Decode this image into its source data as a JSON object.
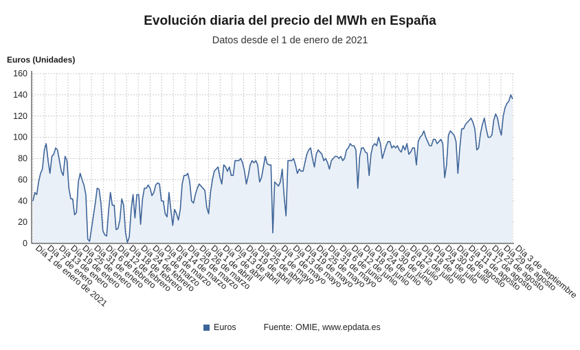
{
  "title": "Evolución diaria del precio del MWh en España",
  "subtitle": "Datos desde el 1 de enero de 2021",
  "legend": {
    "series_label": "Euros",
    "source_prefix": "Fuente:",
    "source": "OMIE, www.epdata.es"
  },
  "colors": {
    "line": "#3d6499",
    "area": "#eaf0f7",
    "grid": "#c8c8c8",
    "axis": "#222222"
  },
  "chart_data": {
    "type": "area",
    "title": "Evolución diaria del precio del MWh en España",
    "subtitle": "Datos desde el 1 de enero de 2021",
    "ylabel": "Euros (Unidades)",
    "xlabel": "",
    "ylim": [
      0,
      160
    ],
    "yticks": [
      0,
      20,
      40,
      60,
      80,
      100,
      120,
      140,
      160
    ],
    "grid": true,
    "legend_position": "bottom",
    "x_tick_labels": [
      "Día 1 de enero de 2021",
      "Día 7 de enero",
      "Día 13 de enero",
      "Día 19 de enero",
      "Día 25 de enero",
      "Día 31 de enero",
      "Día 6 de febrero",
      "Día 12 de febrero",
      "Día 18 de febrero",
      "Día 24 de febrero",
      "Día 2 de marzo",
      "Día 8 de marzo",
      "Día 14 de marzo",
      "Día 20 de marzo",
      "Día 26 de marzo",
      "Día 1 de abril",
      "Día 7 de abril",
      "Día 13 de abril",
      "Día 19 de abril",
      "Día 25 de abril",
      "Día 1 de mayo",
      "Día 7 de mayo",
      "Día 13 de mayo",
      "Día 19 de mayo",
      "Día 25 de mayo",
      "Día 31 de mayo",
      "Día 6 de junio",
      "Día 12 de junio",
      "Día 18 de junio",
      "Día 24 de junio",
      "Día 30 de junio",
      "Día 6 de julio",
      "Día 12 de julio",
      "Día 18 de julio",
      "Día 24 de julio",
      "Día 30 de julio",
      "Día 5 de agosto",
      "Día 11 de agosto",
      "Día 17 de agosto",
      "Día 23 de agosto",
      "Día 29 de agosto",
      "Día 3 de septiembre"
    ],
    "series": [
      {
        "name": "Euros",
        "x_start": "2021-01-01",
        "x_end": "2021-09-03",
        "values": [
          40,
          48,
          46,
          58,
          66,
          70,
          88,
          94,
          78,
          66,
          82,
          84,
          90,
          88,
          78,
          68,
          64,
          82,
          78,
          52,
          42,
          42,
          27,
          29,
          58,
          66,
          60,
          55,
          46,
          4,
          2,
          14,
          26,
          38,
          52,
          51,
          38,
          12,
          8,
          7,
          30,
          48,
          36,
          36,
          13,
          14,
          22,
          42,
          36,
          10,
          1,
          6,
          32,
          46,
          24,
          46,
          46,
          18,
          42,
          52,
          52,
          55,
          52,
          45,
          48,
          55,
          57,
          56,
          40,
          40,
          28,
          25,
          48,
          32,
          17,
          32,
          28,
          22,
          32,
          56,
          64,
          64,
          66,
          58,
          40,
          38,
          46,
          52,
          56,
          54,
          52,
          50,
          34,
          28,
          48,
          60,
          68,
          70,
          72,
          62,
          56,
          74,
          72,
          68,
          72,
          64,
          64,
          78,
          78,
          78,
          80,
          76,
          68,
          56,
          64,
          74,
          78,
          76,
          78,
          74,
          58,
          62,
          72,
          82,
          75,
          74,
          74,
          10,
          58,
          56,
          54,
          58,
          70,
          44,
          26,
          78,
          78,
          78,
          80,
          74,
          66,
          70,
          68,
          68,
          76,
          84,
          88,
          90,
          80,
          72,
          84,
          88,
          86,
          84,
          78,
          80,
          76,
          70,
          78,
          80,
          82,
          82,
          80,
          82,
          78,
          80,
          88,
          90,
          94,
          92,
          92,
          88,
          52,
          82,
          90,
          90,
          86,
          85,
          64,
          84,
          92,
          94,
          92,
          100,
          94,
          80,
          86,
          92,
          96,
          96,
          90,
          92,
          90,
          92,
          88,
          86,
          92,
          88,
          94,
          84,
          86,
          90,
          90,
          74,
          96,
          100,
          102,
          106,
          100,
          96,
          92,
          92,
          98,
          98,
          94,
          96,
          98,
          94,
          62,
          74,
          102,
          106,
          104,
          102,
          96,
          66,
          90,
          108,
          108,
          112,
          114,
          116,
          118,
          114,
          108,
          88,
          90,
          104,
          112,
          118,
          108,
          100,
          100,
          102,
          116,
          122,
          118,
          108,
          102,
          120,
          128,
          132,
          134,
          140,
          136
        ]
      }
    ]
  }
}
